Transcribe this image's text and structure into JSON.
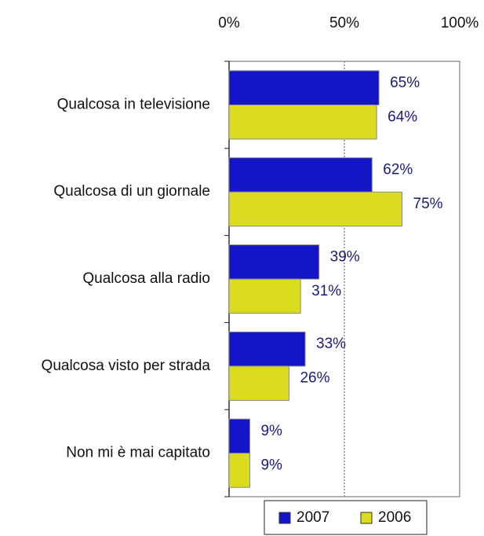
{
  "chart_data": {
    "type": "hbar",
    "categories": [
      "Qualcosa in televisione",
      "Qualcosa di un giornale",
      "Qualcosa alla radio",
      "Qualcosa visto per strada",
      "Non mi è mai capitato"
    ],
    "series": [
      {
        "name": "2007",
        "color": "#1414c8",
        "values": [
          65,
          62,
          39,
          33,
          9
        ],
        "value_labels": [
          "65%",
          "62%",
          "39%",
          "33%",
          "9%"
        ]
      },
      {
        "name": "2006",
        "color": "#dcdc1e",
        "values": [
          64,
          75,
          31,
          26,
          9
        ],
        "value_labels": [
          "64%",
          "75%",
          "31%",
          "26%",
          "9%"
        ]
      }
    ],
    "xlim": [
      0,
      100
    ],
    "xticks": [
      {
        "value": 0,
        "label": "0%"
      },
      {
        "value": 50,
        "label": "50%"
      },
      {
        "value": 100,
        "label": "100%"
      }
    ],
    "grid": true,
    "legend": "bottom"
  }
}
